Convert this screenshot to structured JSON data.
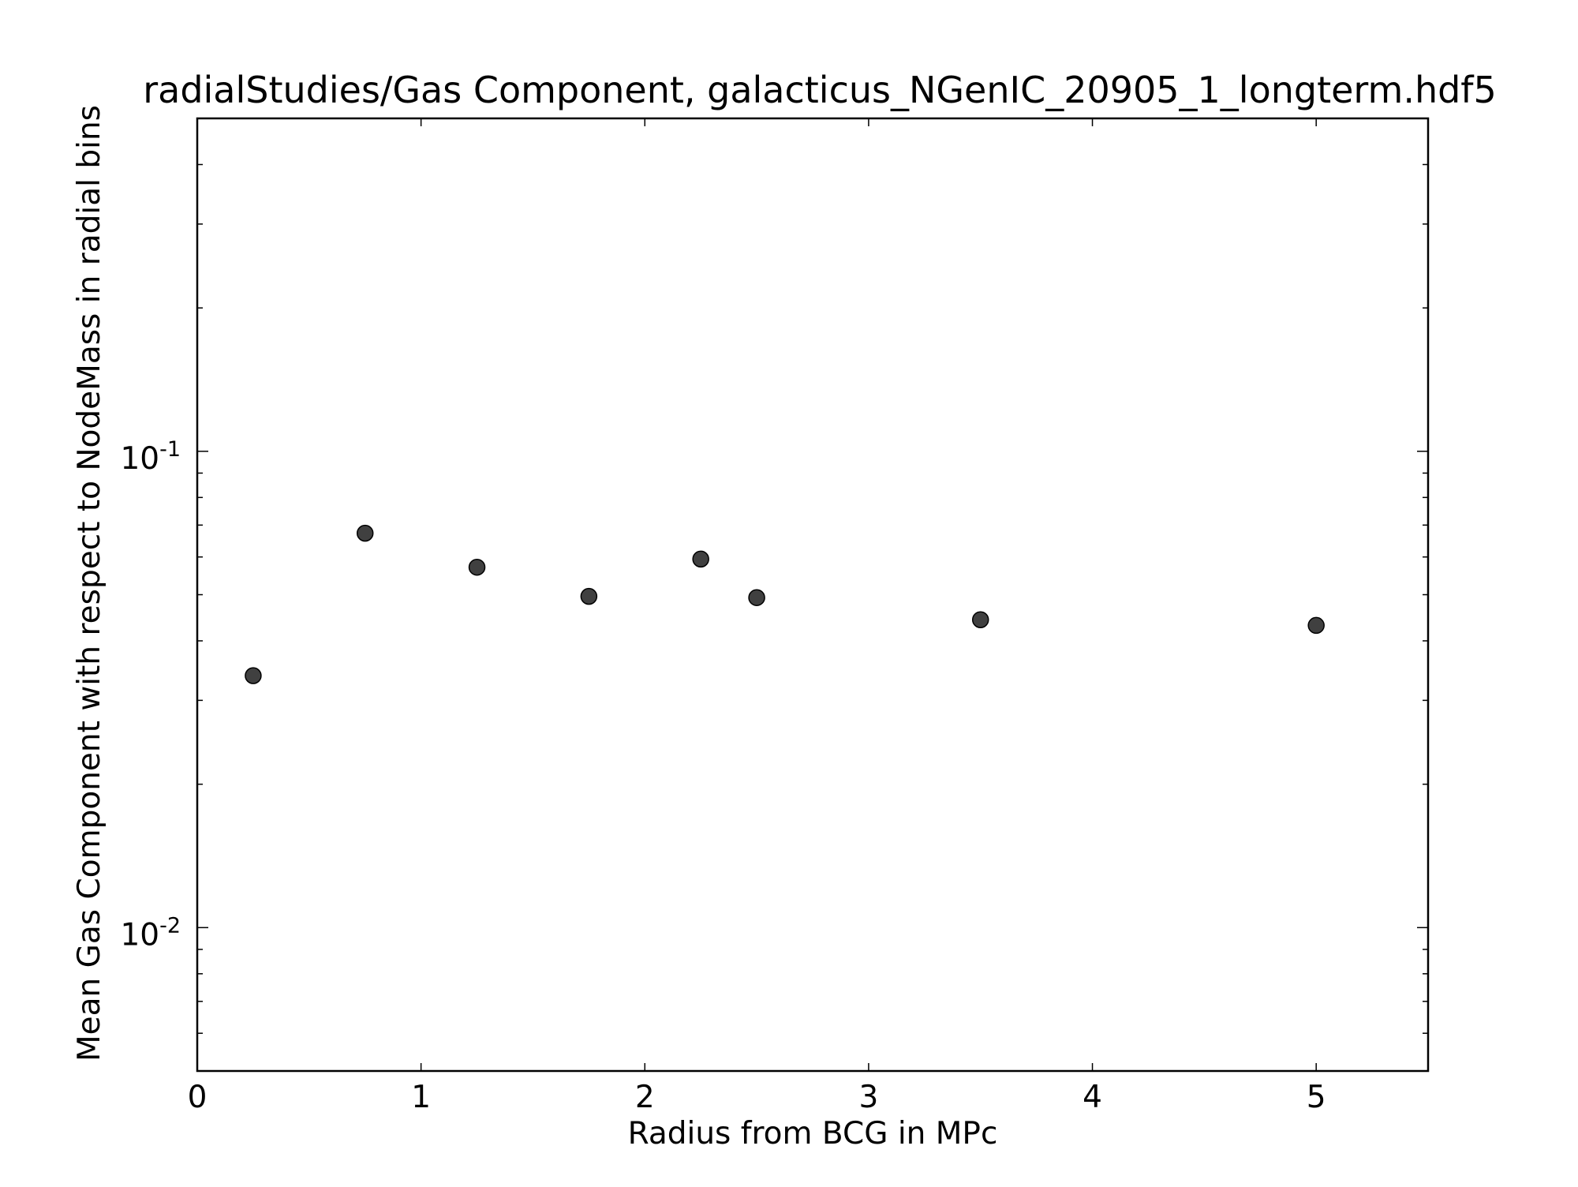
{
  "chart_data": {
    "type": "scatter",
    "title": "radialStudies/Gas Component, galacticus_NGenIC_20905_1_longterm.hdf5",
    "xlabel": "Radius from BCG in MPc",
    "ylabel": "Mean Gas Component with respect to NodeMass in radial bins",
    "x_scale": "linear",
    "y_scale": "log",
    "xlim": [
      0,
      5.5
    ],
    "ylim": [
      0.005,
      0.5
    ],
    "grid": false,
    "legend": "none",
    "x_ticks": [
      {
        "value": 0,
        "label": "0"
      },
      {
        "value": 1,
        "label": "1"
      },
      {
        "value": 2,
        "label": "2"
      },
      {
        "value": 3,
        "label": "3"
      },
      {
        "value": 4,
        "label": "4"
      },
      {
        "value": 5,
        "label": "5"
      }
    ],
    "y_ticks": [
      {
        "value": 0.01,
        "base": "10",
        "exponent": "-2"
      },
      {
        "value": 0.1,
        "base": "10",
        "exponent": "-1"
      }
    ],
    "y_minor_ticks": [
      0.006,
      0.007,
      0.008,
      0.009,
      0.02,
      0.03,
      0.04,
      0.05,
      0.06,
      0.07,
      0.08,
      0.09,
      0.2,
      0.3,
      0.4
    ],
    "marker_color": "#404040",
    "marker_edge_color": "#000000",
    "series": [
      {
        "x": [
          0.25,
          0.75,
          1.25,
          1.75,
          2.25,
          2.5,
          3.5,
          5.0
        ],
        "y": [
          0.0338,
          0.0673,
          0.0571,
          0.0496,
          0.0594,
          0.0493,
          0.0443,
          0.0431
        ]
      }
    ]
  }
}
